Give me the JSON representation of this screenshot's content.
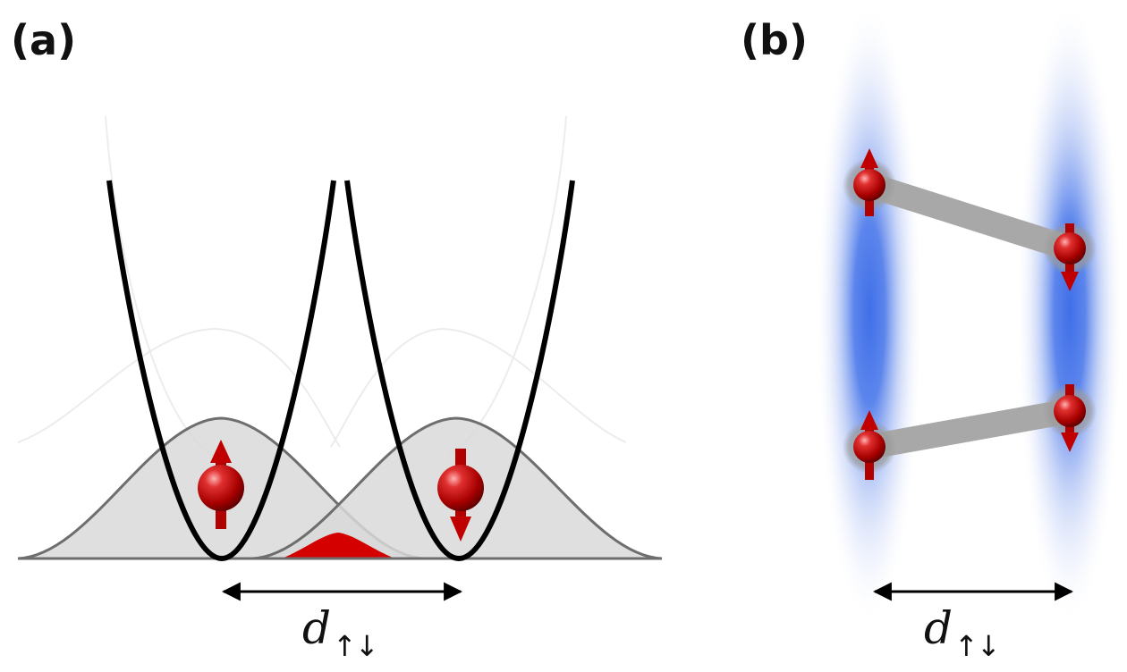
{
  "panel_a": {
    "label": "(a)",
    "distance": {
      "symbol": "d",
      "subscript": "↑↓"
    }
  },
  "panel_b": {
    "label": "(b)",
    "distance": {
      "symbol": "d",
      "subscript": "↑↓"
    }
  },
  "colors": {
    "potential_curve": "#000000",
    "wavefunction_fill": "#d9d9d9",
    "wavefunction_stroke": "#6e6e6e",
    "overlap": "#d40000",
    "spin_particle": "#b00000",
    "bond": "#a8a8a8",
    "trap_glow": "#3f6fe8"
  },
  "icons": {
    "particle": "red-sphere-spin-arrow-icon",
    "distance_arrow": "double-headed-arrow-icon"
  }
}
